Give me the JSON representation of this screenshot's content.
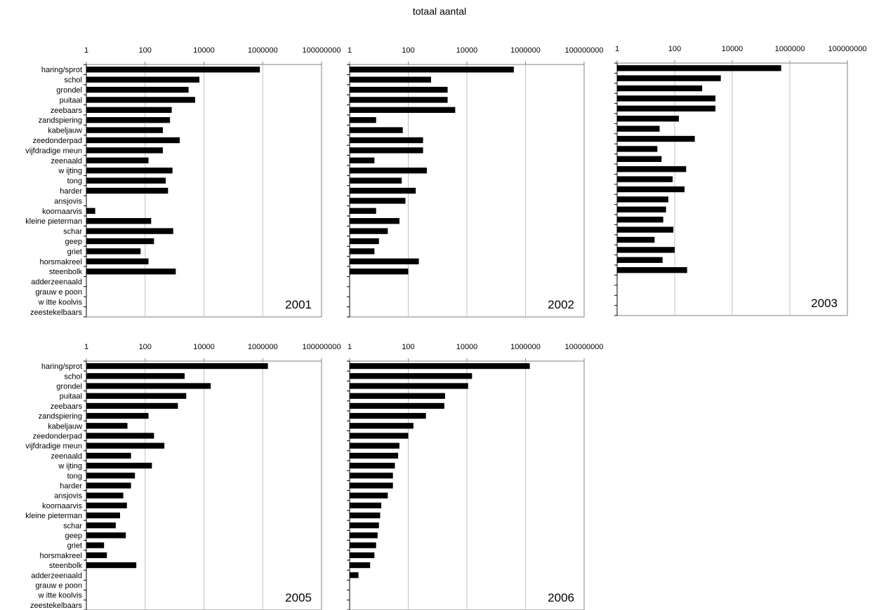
{
  "title": "totaal aantal",
  "categories": [
    "haring/sprot",
    "schol",
    "grondel",
    "puitaal",
    "zeebaars",
    "zandspiering",
    "kabeljauw",
    "zeedonderpad",
    "vijfdradige meun",
    "zeenaald",
    "w ijting",
    "tong",
    "harder",
    "ansjovis",
    "koornaarvis",
    "kleine pieterman",
    "schar",
    "geep",
    "griet",
    "horsmakreel",
    "steenbolk",
    "adderzeenaald",
    "grauw e poon",
    "w itte koolvis",
    "zeestekelbaars"
  ],
  "x_ticks": [
    "1",
    "100",
    "10000",
    "1000000",
    "100000000"
  ],
  "colors": {
    "bar": "#000000",
    "grid": "#c0c0c0",
    "axis": "#808080"
  },
  "chart_data": [
    {
      "type": "bar",
      "orientation": "horizontal",
      "xscale": "log",
      "xlim": [
        1,
        100000000
      ],
      "grid": true,
      "year_label": "2001",
      "values": [
        800000,
        7000,
        3000,
        5000,
        800,
        700,
        400,
        1500,
        400,
        130,
        850,
        500,
        600,
        null,
        2,
        160,
        900,
        200,
        70,
        130,
        1100,
        null,
        null,
        null,
        null
      ]
    },
    {
      "type": "bar",
      "orientation": "horizontal",
      "xscale": "log",
      "xlim": [
        1,
        100000000
      ],
      "grid": true,
      "year_label": "2002",
      "values": [
        400000,
        600,
        2200,
        2200,
        4000,
        8,
        65,
        320,
        320,
        7,
        430,
        60,
        180,
        80,
        8,
        50,
        20,
        10,
        7,
        230,
        100,
        null,
        null,
        null,
        null
      ]
    },
    {
      "type": "bar",
      "orientation": "horizontal",
      "xscale": "log",
      "xlim": [
        1,
        100000000
      ],
      "grid": true,
      "year_label": "2003",
      "values": [
        500000,
        4000,
        900,
        2600,
        2600,
        140,
        30,
        500,
        25,
        35,
        250,
        85,
        220,
        60,
        50,
        40,
        90,
        20,
        100,
        38,
        270,
        null,
        null,
        null,
        null
      ]
    },
    {
      "type": "bar",
      "orientation": "horizontal",
      "xscale": "log",
      "xlim": [
        1,
        100000000
      ],
      "grid": true,
      "year_label": "2005",
      "values": [
        1500000,
        2200,
        17000,
        2500,
        1300,
        130,
        25,
        200,
        450,
        33,
        170,
        45,
        33,
        18,
        24,
        14,
        10,
        22,
        4,
        5,
        50,
        null,
        null,
        null,
        null
      ]
    },
    {
      "type": "bar",
      "orientation": "horizontal",
      "xscale": "log",
      "xlim": [
        1,
        100000000
      ],
      "grid": true,
      "year_label": "2006",
      "values": [
        1400000,
        15000,
        11000,
        1800,
        1700,
        400,
        150,
        100,
        50,
        45,
        35,
        30,
        30,
        20,
        12,
        11,
        10,
        9,
        8,
        7,
        5,
        2,
        null,
        null,
        null
      ]
    }
  ]
}
